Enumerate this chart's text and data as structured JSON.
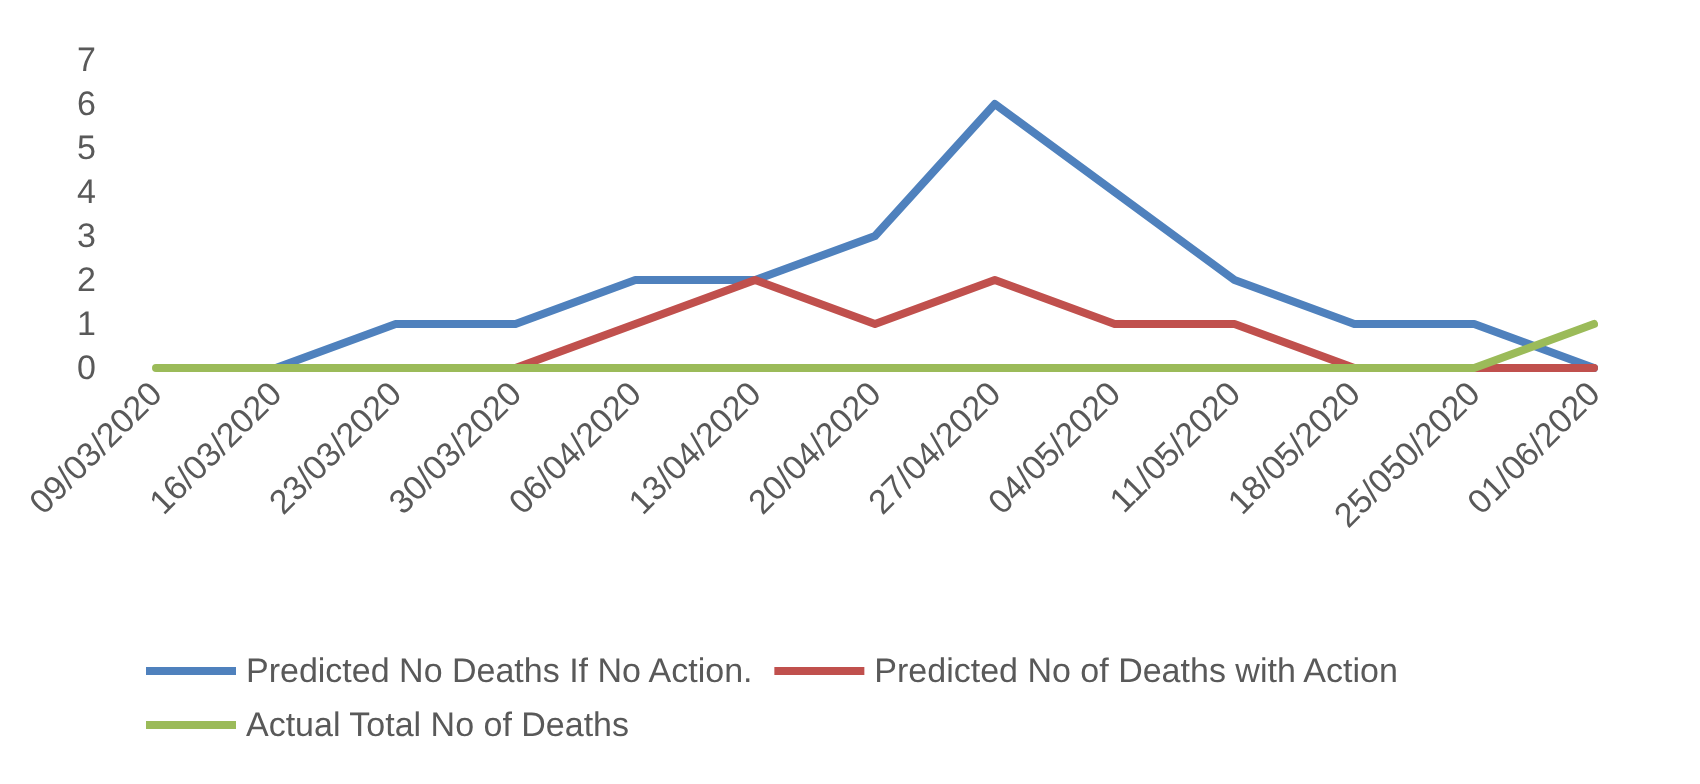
{
  "chart_data": {
    "type": "line",
    "categories": [
      "09/03/2020",
      "16/03/2020",
      "23/03/2020",
      "30/03/2020",
      "06/04/2020",
      "13/04/2020",
      "20/04/2020",
      "27/04/2020",
      "04/05/2020",
      "11/05/2020",
      "18/05/2020",
      "25/050/2020",
      "01/06/2020"
    ],
    "series": [
      {
        "name": "Predicted No Deaths If No Action.",
        "color": "#4f81bd",
        "values": [
          null,
          0,
          1,
          1,
          2,
          2,
          3,
          6,
          4,
          2,
          1,
          1,
          0
        ]
      },
      {
        "name": "Predicted No of Deaths with Action",
        "color": "#c0504d",
        "values": [
          null,
          null,
          null,
          0,
          1,
          2,
          1,
          2,
          1,
          1,
          0,
          0,
          0
        ]
      },
      {
        "name": "Actual Total No of Deaths",
        "color": "#9bbb59",
        "values": [
          0,
          0,
          0,
          0,
          0,
          0,
          0,
          0,
          0,
          0,
          0,
          0,
          1
        ]
      }
    ],
    "ylim": [
      0,
      7
    ],
    "yticks": [
      0,
      1,
      2,
      3,
      4,
      5,
      6,
      7
    ],
    "grid": false,
    "legend": "bottom",
    "marker": "none",
    "line_style": "solid"
  }
}
